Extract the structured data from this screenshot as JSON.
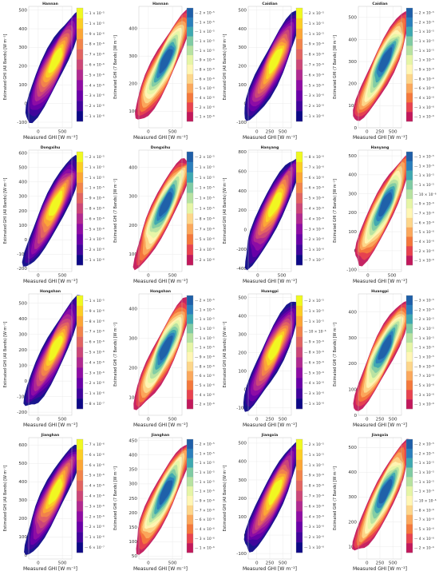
{
  "chart_data": [
    {
      "type": "heatmap",
      "title": "Hannan",
      "xlabel": "Measured GHI [W m⁻²]",
      "ylabel": "Estimated GHI (All Bands) [W m⁻²]",
      "xticks": [
        "0",
        "500"
      ],
      "yticks": [
        "-100",
        "0",
        "100",
        "200",
        "300",
        "400",
        "500"
      ],
      "ylim": [
        -130,
        520
      ],
      "colormap": "plasma",
      "colorbar": [
        "1 × 10⁻⁵",
        "1 × 10⁻⁵",
        "9 × 10⁻⁶",
        "8 × 10⁻⁶",
        "7 × 10⁻⁶",
        "6 × 10⁻⁶",
        "5 × 10⁻⁶",
        "4 × 10⁻⁶",
        "3 × 10⁻⁶",
        "2 × 10⁻⁶",
        "1 × 10⁻⁶"
      ]
    },
    {
      "type": "heatmap",
      "title": "Hannan",
      "xlabel": "Measured GHI [W m⁻²]",
      "ylabel": "Estimated GHI (7 Bands) [W m⁻²]",
      "xticks": [
        "0",
        "500"
      ],
      "yticks": [
        "100",
        "200",
        "300",
        "400"
      ],
      "ylim": [
        40,
        480
      ],
      "colormap": "spectral",
      "colorbar": [
        "2 × 10⁻⁵",
        "1 × 10⁻⁵",
        "1 × 10⁻⁵",
        "1 × 10⁻⁵",
        "1 × 10⁻⁵",
        "9 × 10⁻⁶",
        "8 × 10⁻⁶",
        "6 × 10⁻⁶",
        "5 × 10⁻⁶",
        "4 × 10⁻⁶",
        "2 × 10⁻⁶",
        "1 × 10⁻⁶"
      ]
    },
    {
      "type": "heatmap",
      "title": "Caidian",
      "xlabel": "Measured GHI [W m⁻²]",
      "ylabel": "Estimated GHI (All Bands) [W m⁻²]",
      "xticks": [
        "0",
        "250",
        "500"
      ],
      "yticks": [
        "-100",
        "0",
        "100",
        "200",
        "300",
        "400",
        "500"
      ],
      "ylim": [
        -130,
        520
      ],
      "colormap": "plasma",
      "colorbar": [
        "2 × 10⁻⁵",
        "1 × 10⁻⁵",
        "1 × 10⁻⁵",
        "9 × 10⁻⁶",
        "8 × 10⁻⁶",
        "7 × 10⁻⁶",
        "6 × 10⁻⁶",
        "5 × 10⁻⁶",
        "3 × 10⁻⁶",
        "2 × 10⁻⁶",
        "1 × 10⁻⁶"
      ]
    },
    {
      "type": "heatmap",
      "title": "Caidian",
      "xlabel": "Measured GHI [W m⁻²]",
      "ylabel": "Estimated GHI (7 Bands) [W m⁻²]",
      "xticks": [
        "0",
        "250",
        "500"
      ],
      "yticks": [
        "0",
        "100",
        "200",
        "300",
        "400",
        "500"
      ],
      "ylim": [
        0,
        550
      ],
      "colormap": "spectral",
      "colorbar": [
        "2 × 10⁻⁵",
        "2 × 10⁻⁵",
        "1 × 10⁻⁵",
        "1 × 10⁻⁵",
        "1 × 10⁻⁵",
        "1 × 10⁻⁵",
        "9 × 10⁻⁶",
        "8 × 10⁻⁶",
        "6 × 10⁻⁶",
        "4 × 10⁻⁶",
        "3 × 10⁻⁶",
        "1 × 10⁻⁶"
      ]
    },
    {
      "type": "heatmap",
      "title": "Dongxihu",
      "xlabel": "Measured GHI [W m⁻²]",
      "ylabel": "Estimated GHI (All Bands) [W m⁻²]",
      "xticks": [
        "0",
        "500"
      ],
      "yticks": [
        "-200",
        "-100",
        "0",
        "100",
        "200",
        "300",
        "400",
        "500",
        "600"
      ],
      "ylim": [
        -220,
        620
      ],
      "colormap": "plasma",
      "colorbar": [
        "2 × 10⁻⁵",
        "1 × 10⁻⁵",
        "1 × 10⁻⁵",
        "1 × 10⁻⁵",
        "9 × 10⁻⁶",
        "8 × 10⁻⁶",
        "6 × 10⁻⁶",
        "5 × 10⁻⁶",
        "3 × 10⁻⁶",
        "2 × 10⁻⁶",
        "1 × 10⁻⁶"
      ]
    },
    {
      "type": "heatmap",
      "title": "Dongxihu",
      "xlabel": "Measured GHI [W m⁻²]",
      "ylabel": "Estimated GHI (7 Bands) [W m⁻²]",
      "xticks": [
        "0",
        "500"
      ],
      "yticks": [
        "100",
        "200",
        "300",
        "400"
      ],
      "ylim": [
        40,
        460
      ],
      "colormap": "spectral",
      "colorbar": [
        "2 × 10⁻⁵",
        "1 × 10⁻⁵",
        "1 × 10⁻⁵",
        "1 × 10⁻⁵",
        "1 × 10⁻⁵",
        "1 × 10⁻⁵",
        "8 × 10⁻⁶",
        "7 × 10⁻⁶",
        "5 × 10⁻⁶",
        "3 × 10⁻⁶",
        "2 × 10⁻⁶"
      ]
    },
    {
      "type": "heatmap",
      "title": "Hanyang",
      "xlabel": "Measured GHI [W m⁻²]",
      "ylabel": "Estimated GHI (All Bands) [W m⁻²]",
      "xticks": [
        "0",
        "500"
      ],
      "yticks": [
        "-400",
        "-200",
        "0",
        "200",
        "400",
        "600",
        "800"
      ],
      "ylim": [
        -430,
        820
      ],
      "colormap": "plasma",
      "colorbar": [
        "8 × 10⁻⁶",
        "7 × 10⁻⁶",
        "6 × 10⁻⁶",
        "6 × 10⁻⁶",
        "5 × 10⁻⁶",
        "4 × 10⁻⁶",
        "4 × 10⁻⁶",
        "3 × 10⁻⁶",
        "2 × 10⁻⁶",
        "1 × 10⁻⁶",
        "7 × 10⁻⁷"
      ]
    },
    {
      "type": "heatmap",
      "title": "Hanyang",
      "xlabel": "Measured GHI [W m⁻²]",
      "ylabel": "Estimated GHI (7 Bands) [W m⁻²]",
      "xticks": [
        "0",
        "500"
      ],
      "yticks": [
        "-100",
        "0",
        "100",
        "200",
        "300",
        "400",
        "500"
      ],
      "ylim": [
        -110,
        530
      ],
      "colormap": "spectral",
      "colorbar": [
        "1 × 10⁻⁵",
        "1 × 10⁻⁵",
        "1 × 10⁻⁵",
        "1 × 10⁻⁵",
        "10 × 10⁻⁶",
        "9 × 10⁻⁶",
        "7 × 10⁻⁶",
        "6 × 10⁻⁶",
        "5 × 10⁻⁶",
        "4 × 10⁻⁶",
        "2 × 10⁻⁶",
        "1 × 10⁻⁶"
      ]
    },
    {
      "type": "heatmap",
      "title": "Hongshan",
      "xlabel": "Measured GHI [W m⁻²]",
      "ylabel": "Estimated GHI (All Bands) [W m⁻²]",
      "xticks": [
        "0",
        "500"
      ],
      "yticks": [
        "-200",
        "-100",
        "0",
        "100",
        "200",
        "300",
        "400",
        "500"
      ],
      "ylim": [
        -220,
        560
      ],
      "colormap": "plasma",
      "colorbar": [
        "1 × 10⁻⁵",
        "9 × 10⁻⁶",
        "8 × 10⁻⁶",
        "7 × 10⁻⁶",
        "6 × 10⁻⁶",
        "5 × 10⁻⁶",
        "4 × 10⁻⁶",
        "3 × 10⁻⁶",
        "2 × 10⁻⁶",
        "1 × 10⁻⁶",
        "8 × 10⁻⁷"
      ]
    },
    {
      "type": "heatmap",
      "title": "Hongshan",
      "xlabel": "Measured GHI [W m⁻²]",
      "ylabel": "Estimated GHI (7 Bands) [W m⁻²]",
      "xticks": [
        "0",
        "500"
      ],
      "yticks": [
        "100",
        "200",
        "300",
        "400"
      ],
      "ylim": [
        40,
        450
      ],
      "colormap": "spectral",
      "colorbar": [
        "2 × 10⁻⁵",
        "1 × 10⁻⁵",
        "1 × 10⁻⁵",
        "1 × 10⁻⁵",
        "1 × 10⁻⁵",
        "1 × 10⁻⁵",
        "9 × 10⁻⁶",
        "8 × 10⁻⁶",
        "6 × 10⁻⁶",
        "5 × 10⁻⁶",
        "4 × 10⁻⁶",
        "2 × 10⁻⁶"
      ]
    },
    {
      "type": "heatmap",
      "title": "Huangpi",
      "xlabel": "Measured GHI [W m⁻²]",
      "ylabel": "Estimated GHI (All Bands) [W m⁻²]",
      "xticks": [
        "0",
        "250",
        "500"
      ],
      "yticks": [
        "-100",
        "0",
        "100",
        "200",
        "300",
        "400",
        "500"
      ],
      "ylim": [
        -140,
        520
      ],
      "colormap": "plasma",
      "colorbar": [
        "2 × 10⁻⁵",
        "1 × 10⁻⁵",
        "1 × 10⁻⁵",
        "10 × 10⁻⁶",
        "9 × 10⁻⁶",
        "8 × 10⁻⁶",
        "6 × 10⁻⁶",
        "5 × 10⁻⁶",
        "4 × 10⁻⁶",
        "3 × 10⁻⁶",
        "1 × 10⁻⁶"
      ]
    },
    {
      "type": "heatmap",
      "title": "Huangpi",
      "xlabel": "Measured GHI [W m⁻²]",
      "ylabel": "Estimated GHI (7 Bands) [W m⁻²]",
      "xticks": [
        "0",
        "250",
        "500"
      ],
      "yticks": [
        "0",
        "100",
        "200",
        "300",
        "400"
      ],
      "ylim": [
        0,
        470
      ],
      "colormap": "spectral",
      "colorbar": [
        "3 × 10⁻⁵",
        "2 × 10⁻⁵",
        "2 × 10⁻⁵",
        "2 × 10⁻⁵",
        "1 × 10⁻⁵",
        "1 × 10⁻⁵",
        "1 × 10⁻⁵",
        "9 × 10⁻⁶",
        "7 × 10⁻⁶",
        "5 × 10⁻⁶",
        "3 × 10⁻⁶",
        "1 × 10⁻⁶"
      ]
    },
    {
      "type": "heatmap",
      "title": "Jianghan",
      "xlabel": "Measured GHI [W m⁻²]",
      "ylabel": "Estimated GHI (All Bands) [W m⁻²]",
      "xticks": [
        "0",
        "500"
      ],
      "yticks": [
        "0",
        "100",
        "200",
        "300",
        "400",
        "500",
        "600"
      ],
      "ylim": [
        -20,
        640
      ],
      "colormap": "plasma",
      "colorbar": [
        "7 × 10⁻⁶",
        "6 × 10⁻⁶",
        "6 × 10⁻⁶",
        "5 × 10⁻⁶",
        "4 × 10⁻⁶",
        "4 × 10⁻⁶",
        "3 × 10⁻⁶",
        "2 × 10⁻⁶",
        "2 × 10⁻⁶",
        "1 × 10⁻⁶",
        "6 × 10⁻⁷"
      ]
    },
    {
      "type": "heatmap",
      "title": "Jianghan",
      "xlabel": "Measured GHI [W m⁻²]",
      "ylabel": "Estimated GHI (7 Bands) [W m⁻²]",
      "xticks": [
        "0",
        "500"
      ],
      "yticks": [
        "50",
        "100",
        "150",
        "200",
        "250",
        "300",
        "350",
        "400",
        "450"
      ],
      "ylim": [
        40,
        460
      ],
      "colormap": "spectral",
      "colorbar": [
        "2 × 10⁻⁵",
        "1 × 10⁻⁵",
        "1 × 10⁻⁵",
        "1 × 10⁻⁵",
        "1 × 10⁻⁵",
        "1 × 10⁻⁵",
        "9 × 10⁻⁶",
        "7 × 10⁻⁶",
        "6 × 10⁻⁶",
        "4 × 10⁻⁶",
        "3 × 10⁻⁶",
        "1 × 10⁻⁶"
      ]
    },
    {
      "type": "heatmap",
      "title": "Jiangxia",
      "xlabel": "Measured GHI [W m⁻²]",
      "ylabel": "Estimated GHI (All Bands) [W m⁻²]",
      "xticks": [
        "0",
        "250",
        "500"
      ],
      "yticks": [
        "-100",
        "0",
        "100",
        "200",
        "300",
        "400",
        "500"
      ],
      "ylim": [
        -130,
        530
      ],
      "colormap": "plasma",
      "colorbar": [
        "2 × 10⁻⁵",
        "1 × 10⁻⁵",
        "1 × 10⁻⁵",
        "9 × 10⁻⁶",
        "8 × 10⁻⁶",
        "7 × 10⁻⁶",
        "6 × 10⁻⁶",
        "4 × 10⁻⁶",
        "3 × 10⁻⁶",
        "2 × 10⁻⁶",
        "1 × 10⁻⁶"
      ]
    },
    {
      "type": "heatmap",
      "title": "Jiangxia",
      "xlabel": "Measured GHI [W m⁻²]",
      "ylabel": "Estimated GHI (7 Bands) [W m⁻²]",
      "xticks": [
        "0",
        "250",
        "500"
      ],
      "yticks": [
        "100",
        "200",
        "300",
        "400",
        "500"
      ],
      "ylim": [
        50,
        540
      ],
      "colormap": "spectral",
      "colorbar": [
        "2 × 10⁻⁵",
        "2 × 10⁻⁵",
        "1 × 10⁻⁵",
        "1 × 10⁻⁵",
        "1 × 10⁻⁵",
        "1 × 10⁻⁵",
        "10 × 10⁻⁶",
        "8 × 10⁻⁶",
        "7 × 10⁻⁶",
        "5 × 10⁻⁶",
        "4 × 10⁻⁶",
        "2 × 10⁻⁶"
      ]
    }
  ]
}
